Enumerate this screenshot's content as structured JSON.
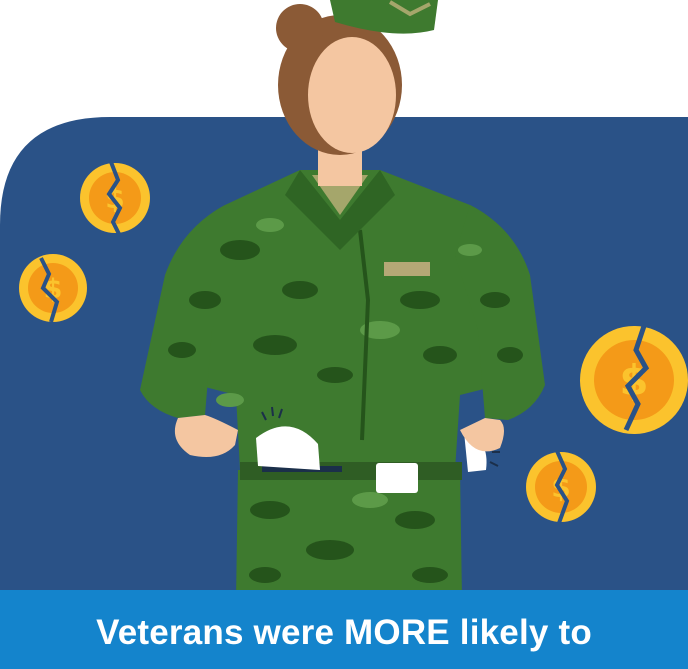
{
  "caption": {
    "text": "Veterans were MORE likely to"
  },
  "colors": {
    "page_background": "#ffffff",
    "panel": "#2a5287",
    "caption_bar": "#1484cc",
    "caption_text": "#ffffff",
    "uniform_green": "#3e7a2f",
    "camo_dark": "#25541b",
    "hair": "#8b5a36",
    "skin": "#f4c6a1",
    "coin_gold": "#fbc32d",
    "coin_orange": "#f49a18"
  },
  "icons": [
    "broken-coin-icon",
    "name-tag-icon",
    "empty-pocket-icon",
    "belt-buckle-icon"
  ]
}
